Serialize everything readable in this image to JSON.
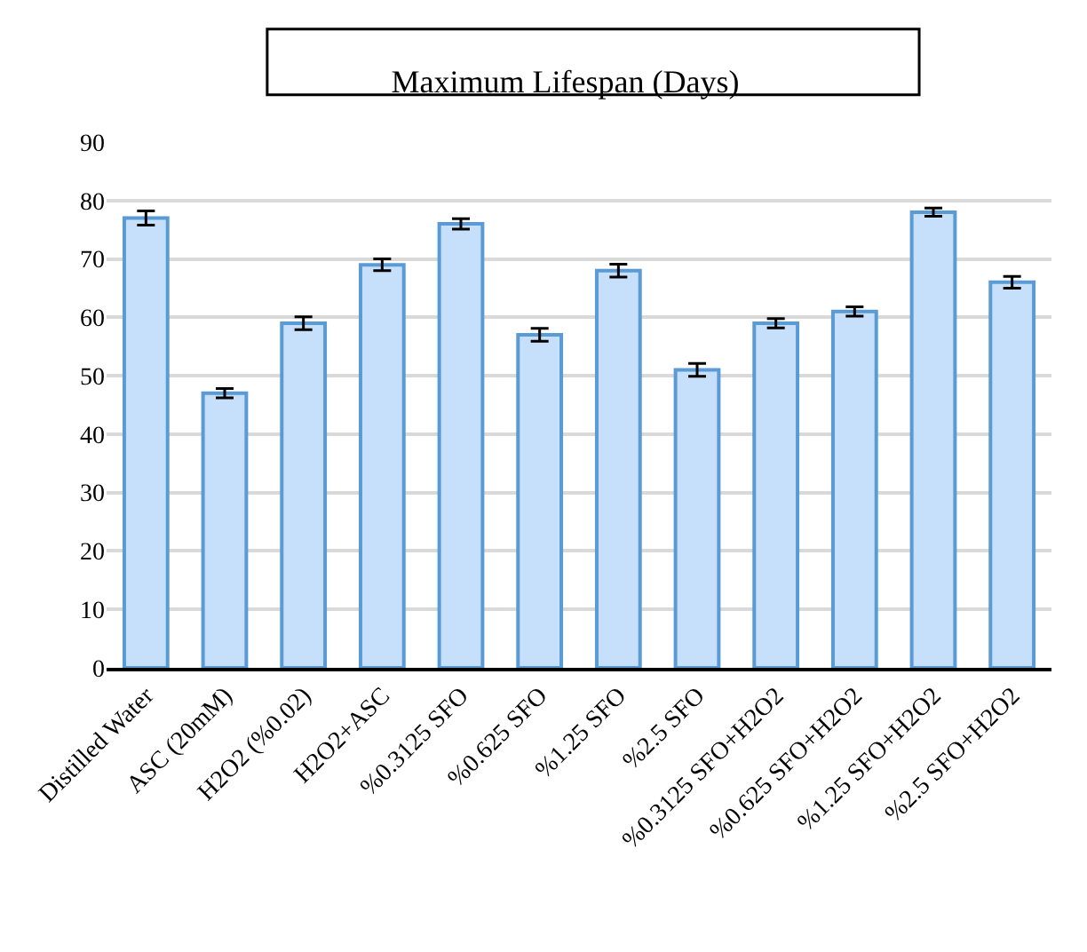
{
  "chart_data": {
    "type": "bar",
    "title": "Maximum Lifespan (Days)",
    "categories": [
      "Distilled Water",
      "ASC (20mM)",
      "H2O2 (%0.02)",
      "H2O2+ASC",
      "%0.3125 SFO",
      "%0.625 SFO",
      "%1.25 SFO",
      "%2.5 SFO",
      "%0.3125 SFO+H2O2",
      "%0.625 SFO+H2O2",
      "%1.25 SFO+H2O2",
      "%2.5 SFO+H2O2"
    ],
    "values": [
      77,
      47,
      59,
      69,
      76,
      57,
      68,
      51,
      59,
      61,
      78,
      66
    ],
    "errors": [
      1.2,
      0.8,
      1.1,
      1,
      0.9,
      1.1,
      1.1,
      1.1,
      0.8,
      0.8,
      0.7,
      1
    ],
    "color": "#c6e0fb",
    "ylim": [
      0,
      90
    ],
    "yticks": [
      0,
      10,
      20,
      30,
      40,
      50,
      60,
      70,
      80,
      90
    ],
    "grid": "y"
  }
}
